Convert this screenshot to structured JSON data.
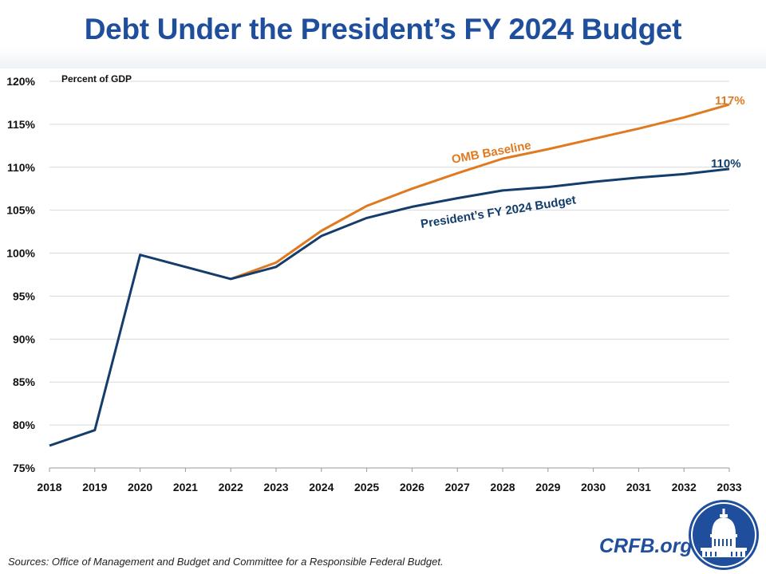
{
  "title": "Debt Under the President’s FY 2024 Budget",
  "footer": {
    "source": "Sources: Office of Management and Budget and Committee for a Responsible Federal Budget.",
    "brand": "CRFB.org"
  },
  "colors": {
    "title": "#1f4e9c",
    "budget": "#143d6b",
    "baseline": "#e07a20",
    "grid": "#d9d9d9"
  },
  "chart_data": {
    "type": "line",
    "title": "Debt Under the President’s FY 2024 Budget",
    "ylabel": "Percent of GDP",
    "xlabel": "",
    "x": [
      2018,
      2019,
      2020,
      2021,
      2022,
      2023,
      2024,
      2025,
      2026,
      2027,
      2028,
      2029,
      2030,
      2031,
      2032,
      2033
    ],
    "ylim": [
      75,
      120
    ],
    "yticks": [
      75,
      80,
      85,
      90,
      95,
      100,
      105,
      110,
      115,
      120
    ],
    "ytick_labels": [
      "75%",
      "80%",
      "85%",
      "90%",
      "95%",
      "100%",
      "105%",
      "110%",
      "115%",
      "120%"
    ],
    "grid": "horizontal",
    "series": [
      {
        "name": "OMB Baseline",
        "color": "#e07a20",
        "x": [
          2022,
          2023,
          2024,
          2025,
          2026,
          2027,
          2028,
          2029,
          2030,
          2031,
          2032,
          2033
        ],
        "values": [
          97.0,
          98.9,
          102.6,
          105.5,
          107.5,
          109.3,
          111.0,
          112.1,
          113.3,
          114.5,
          115.8,
          117.3
        ],
        "end_label": "117%"
      },
      {
        "name": "President’s FY 2024 Budget",
        "color": "#143d6b",
        "x": [
          2018,
          2019,
          2020,
          2021,
          2022,
          2023,
          2024,
          2025,
          2026,
          2027,
          2028,
          2029,
          2030,
          2031,
          2032,
          2033
        ],
        "values": [
          77.6,
          79.4,
          99.8,
          98.4,
          97.0,
          98.4,
          102.0,
          104.1,
          105.4,
          106.4,
          107.3,
          107.7,
          108.3,
          108.8,
          109.2,
          109.8
        ],
        "end_label": "110%"
      }
    ]
  }
}
